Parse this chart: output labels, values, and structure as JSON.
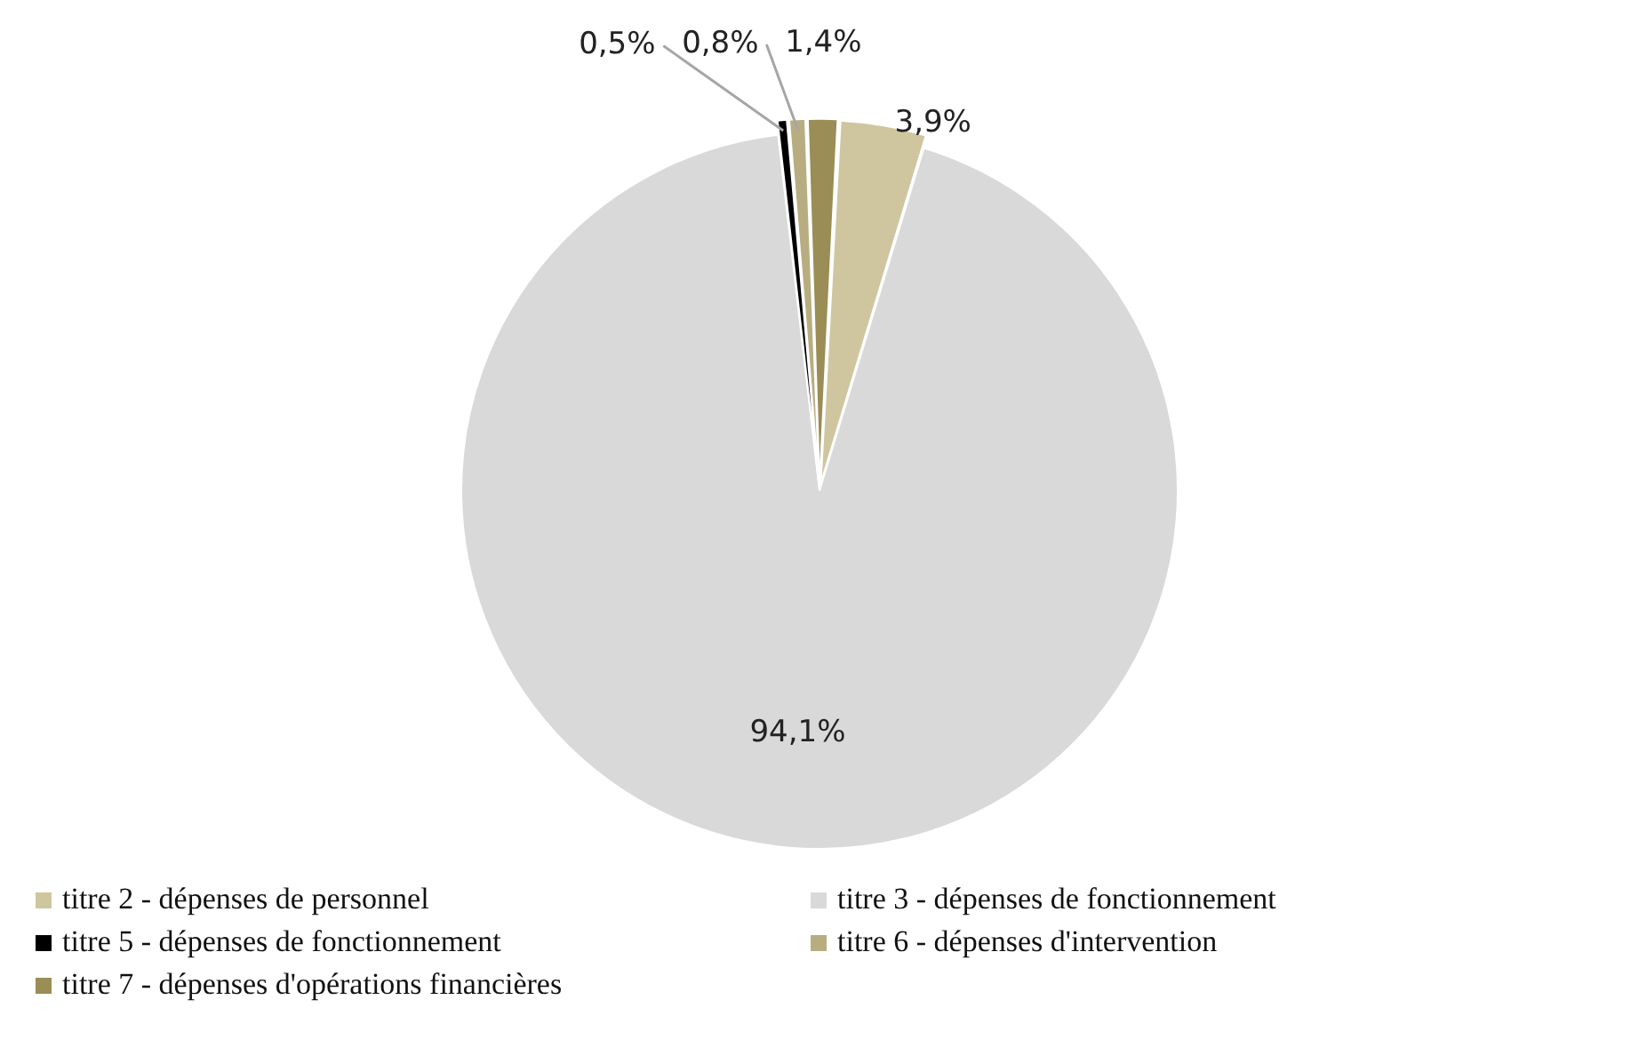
{
  "chart_data": {
    "type": "pie",
    "categories": [
      "titre 2 - dépenses de personnel",
      "titre 3 - dépenses de fonctionnement",
      "titre 5 - dépenses de fonctionnement",
      "titre 6 - dépenses d'intervention",
      "titre 7 - dépenses d'opérations financières"
    ],
    "values": [
      3.9,
      94.1,
      0.5,
      0.8,
      1.4
    ],
    "value_labels": [
      "3,9%",
      "94,1%",
      "0,5%",
      "0,8%",
      "1,4%"
    ],
    "colors": [
      "#cfc6a0",
      "#d9d9d9",
      "#000000",
      "#b8ad80",
      "#9a8d55"
    ],
    "legend": "bottom"
  }
}
